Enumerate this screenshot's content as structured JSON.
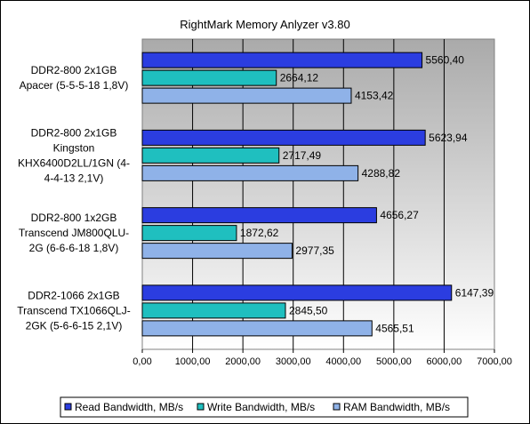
{
  "chart_data": {
    "type": "bar",
    "orientation": "horizontal",
    "title": "RightMark Memory Anlyzer v3.80",
    "categories": [
      [
        "DDR2-800 2x1GB",
        "Apacer (5-5-5-18 1,8V)"
      ],
      [
        "DDR2-800 2x1GB",
        "Kingston",
        "KHX6400D2LL/1GN (4-",
        "4-4-13 2,1V)"
      ],
      [
        "DDR2-800 1x2GB",
        "Transcend JM800QLU-",
        "2G (6-6-6-18 1,8V)"
      ],
      [
        "DDR2-1066 2x1GB",
        "Transcend TX1066QLJ-",
        "2GK (5-6-6-15 2,1V)"
      ]
    ],
    "series": [
      {
        "name": "Read Bandwidth, MB/s",
        "color": "#2b3de0",
        "values": [
          5560.4,
          5623.94,
          4656.27,
          6147.39
        ],
        "labels": [
          "5560,40",
          "5623,94",
          "4656,27",
          "6147,39"
        ]
      },
      {
        "name": "Write Bandwidth, MB/s",
        "color": "#1fbfbf",
        "values": [
          2664.12,
          2717.49,
          1872.62,
          2845.5
        ],
        "labels": [
          "2664,12",
          "2717,49",
          "1872,62",
          "2845,50"
        ]
      },
      {
        "name": "RAM  Bandwidth, MB/s",
        "color": "#8fb2e8",
        "values": [
          4153.42,
          4288.82,
          2977.35,
          4565.51
        ],
        "labels": [
          "4153,42",
          "4288,82",
          "2977,35",
          "4565,51"
        ]
      }
    ],
    "xlim": [
      0,
      7000
    ],
    "xticks": [
      0,
      1000,
      2000,
      3000,
      4000,
      5000,
      6000,
      7000
    ],
    "xtick_labels": [
      "0,00",
      "1000,00",
      "2000,00",
      "3000,00",
      "4000,00",
      "5000,00",
      "6000,00",
      "7000,00"
    ],
    "grid": "vertical",
    "legend": "bottom",
    "plot_background": "#c0c0c0"
  }
}
